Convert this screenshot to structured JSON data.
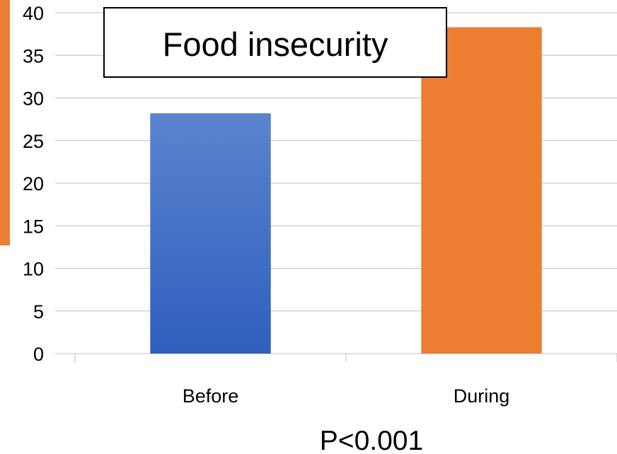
{
  "chart_data": {
    "type": "bar",
    "title": "Food insecurity",
    "xlabel": "",
    "ylabel": "",
    "categories": [
      "Before",
      "During"
    ],
    "values": [
      28.2,
      38.3
    ],
    "ylim": [
      0,
      40
    ],
    "yticks": [
      0,
      5,
      10,
      15,
      20,
      25,
      30,
      35,
      40
    ],
    "grid": true,
    "legend": "none",
    "annotation": "P<0.001",
    "colors": [
      "#4472C4",
      "#ED7D31"
    ]
  }
}
